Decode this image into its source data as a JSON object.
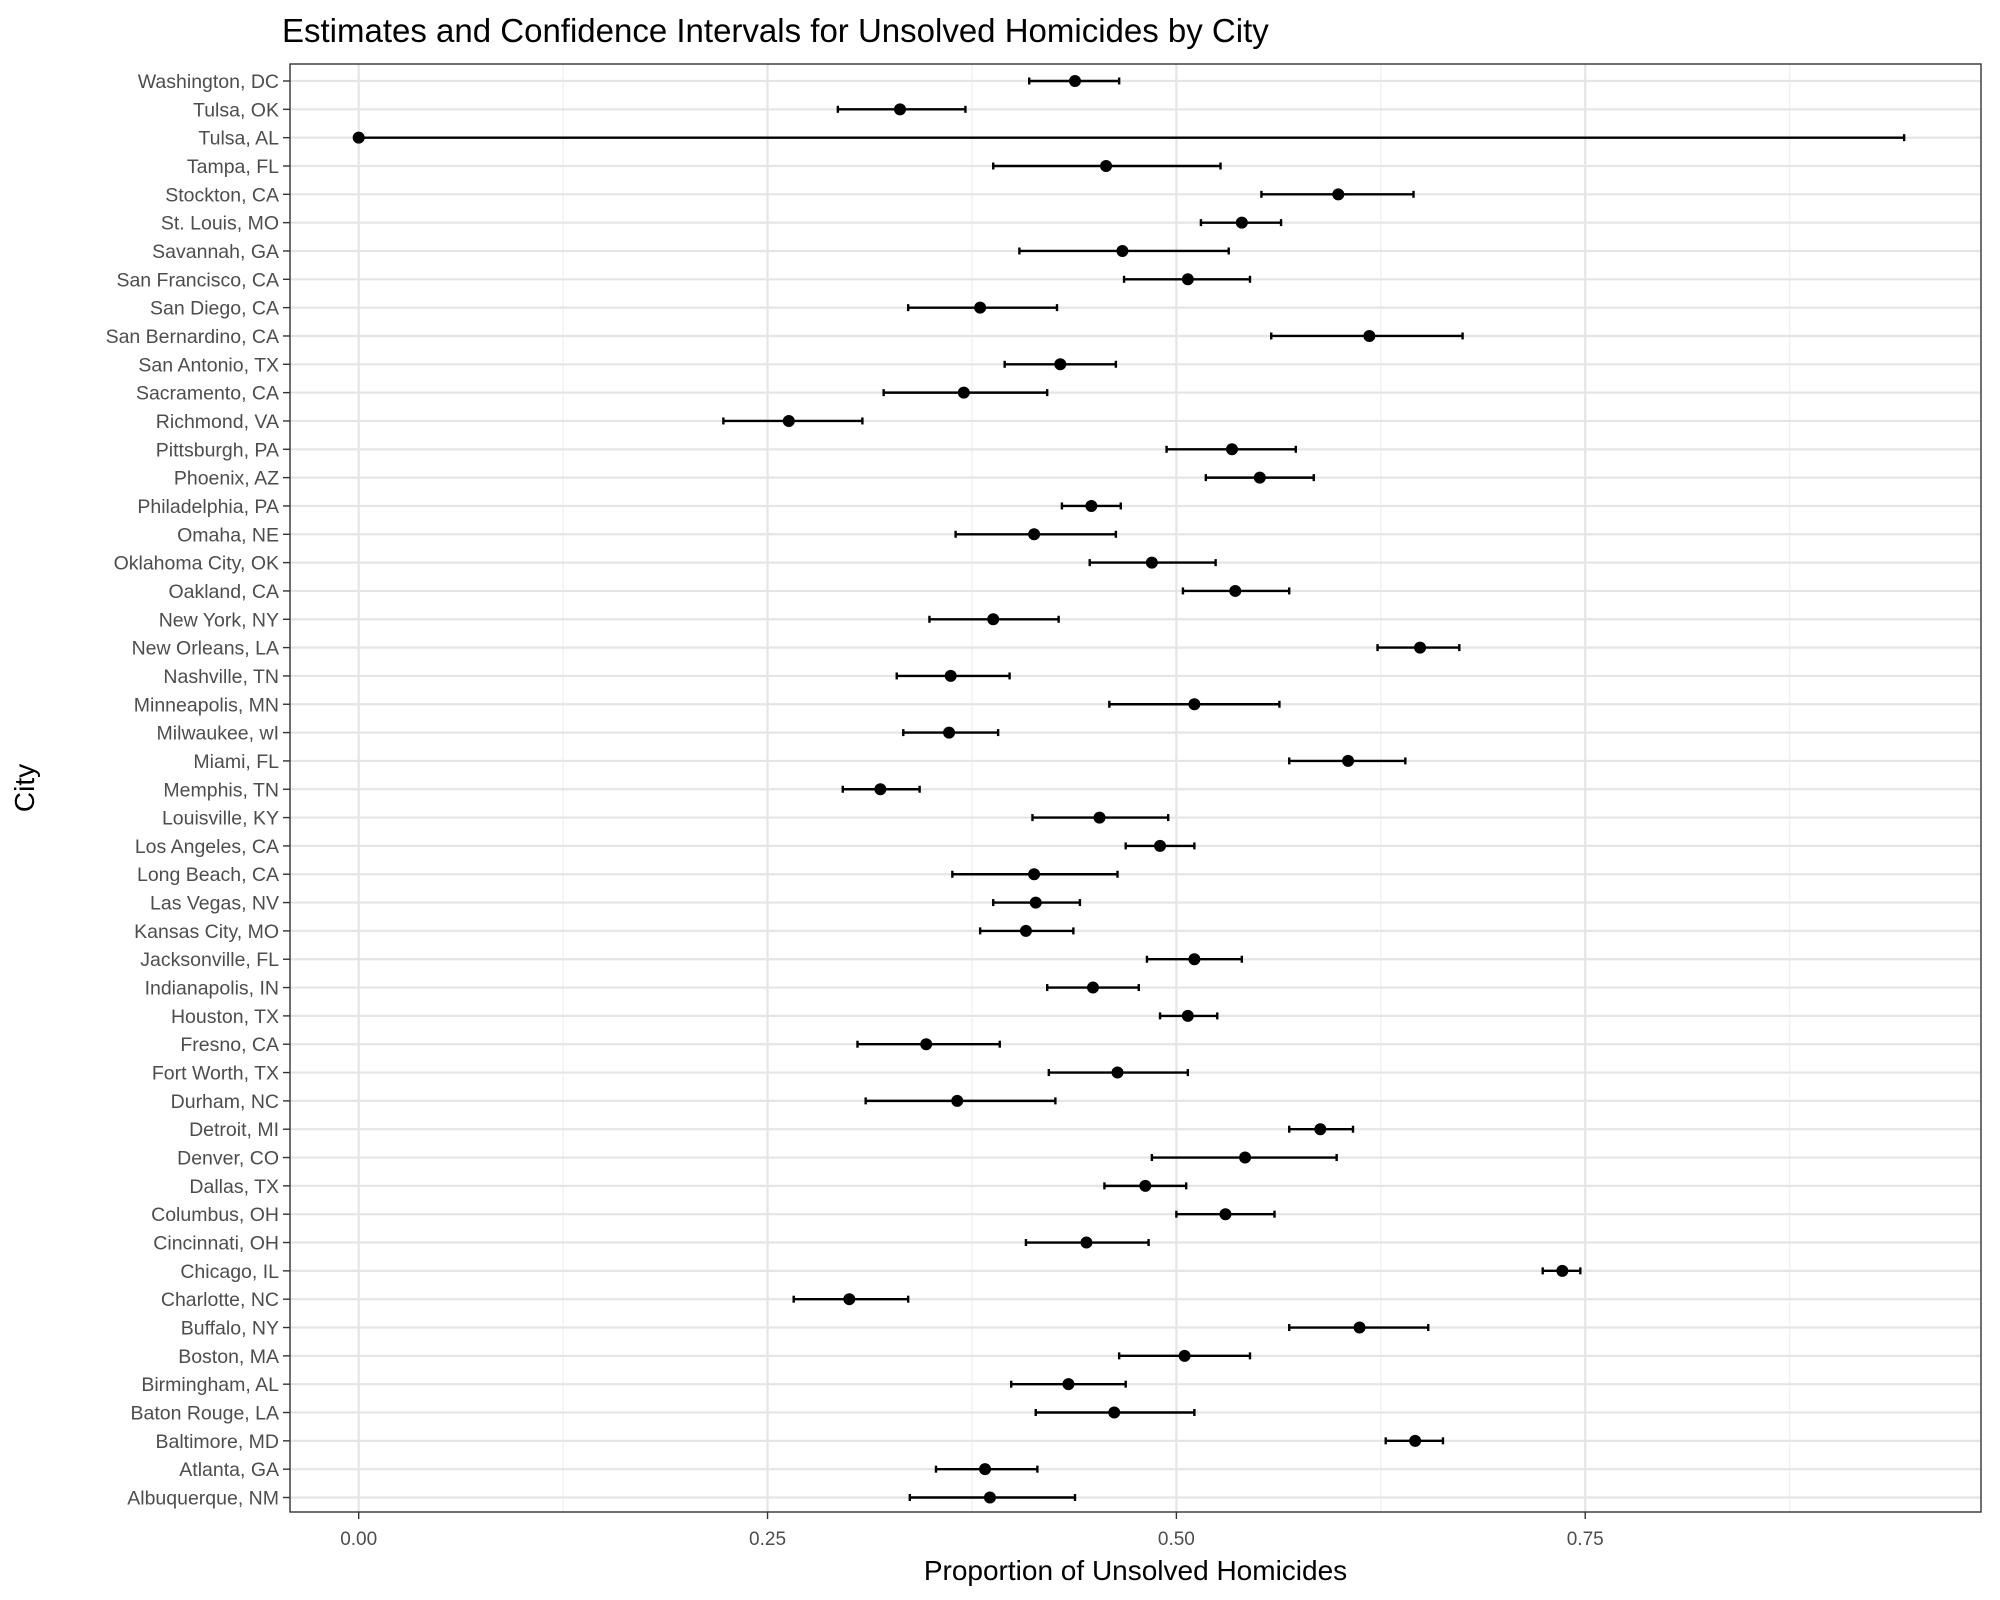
{
  "chart_data": {
    "type": "errorbar",
    "title": "Estimates and Confidence Intervals for Unsolved Homicides by City",
    "xlabel": "Proportion of Unsolved Homicides",
    "ylabel": "City",
    "xlim": [
      -0.042,
      0.992
    ],
    "xticks": [
      0,
      0.25,
      0.5,
      0.75
    ],
    "xtick_labels": [
      "0.00",
      "0.25",
      "0.50",
      "0.75"
    ],
    "grid": true,
    "legend": "none",
    "colors": {
      "point": "#000000",
      "errorbar": "#000000",
      "grid_major": "#e5e5e5",
      "grid_minor": "#f0f0f0",
      "panel_border": "#333333",
      "tick_text": "#4d4d4d"
    },
    "cities": [
      {
        "city": "Washington, DC",
        "estimate": 0.438,
        "lower": 0.41,
        "upper": 0.465
      },
      {
        "city": "Tulsa, OK",
        "estimate": 0.331,
        "lower": 0.293,
        "upper": 0.371
      },
      {
        "city": "Tulsa, AL",
        "estimate": 0.0,
        "lower": 0.0,
        "upper": 0.945
      },
      {
        "city": "Tampa, FL",
        "estimate": 0.457,
        "lower": 0.388,
        "upper": 0.527
      },
      {
        "city": "Stockton, CA",
        "estimate": 0.599,
        "lower": 0.552,
        "upper": 0.645
      },
      {
        "city": "St. Louis, MO",
        "estimate": 0.54,
        "lower": 0.515,
        "upper": 0.564
      },
      {
        "city": "Savannah, GA",
        "estimate": 0.467,
        "lower": 0.404,
        "upper": 0.532
      },
      {
        "city": "San Francisco, CA",
        "estimate": 0.507,
        "lower": 0.468,
        "upper": 0.545
      },
      {
        "city": "San Diego, CA",
        "estimate": 0.38,
        "lower": 0.336,
        "upper": 0.427
      },
      {
        "city": "San Bernardino, CA",
        "estimate": 0.618,
        "lower": 0.558,
        "upper": 0.675
      },
      {
        "city": "San Antonio, TX",
        "estimate": 0.429,
        "lower": 0.395,
        "upper": 0.463
      },
      {
        "city": "Sacramento, CA",
        "estimate": 0.37,
        "lower": 0.321,
        "upper": 0.421
      },
      {
        "city": "Richmond, VA",
        "estimate": 0.263,
        "lower": 0.223,
        "upper": 0.308
      },
      {
        "city": "Pittsburgh, PA",
        "estimate": 0.534,
        "lower": 0.494,
        "upper": 0.573
      },
      {
        "city": "Phoenix, AZ",
        "estimate": 0.551,
        "lower": 0.518,
        "upper": 0.584
      },
      {
        "city": "Philadelphia, PA",
        "estimate": 0.448,
        "lower": 0.43,
        "upper": 0.466
      },
      {
        "city": "Omaha, NE",
        "estimate": 0.413,
        "lower": 0.365,
        "upper": 0.463
      },
      {
        "city": "Oklahoma City, OK",
        "estimate": 0.485,
        "lower": 0.447,
        "upper": 0.524
      },
      {
        "city": "Oakland, CA",
        "estimate": 0.536,
        "lower": 0.504,
        "upper": 0.569
      },
      {
        "city": "New York, NY",
        "estimate": 0.388,
        "lower": 0.349,
        "upper": 0.428
      },
      {
        "city": "New Orleans, LA",
        "estimate": 0.649,
        "lower": 0.623,
        "upper": 0.673
      },
      {
        "city": "Nashville, TN",
        "estimate": 0.362,
        "lower": 0.329,
        "upper": 0.398
      },
      {
        "city": "Minneapolis, MN",
        "estimate": 0.511,
        "lower": 0.459,
        "upper": 0.563
      },
      {
        "city": "Milwaukee, wI",
        "estimate": 0.361,
        "lower": 0.333,
        "upper": 0.391
      },
      {
        "city": "Miami, FL",
        "estimate": 0.605,
        "lower": 0.569,
        "upper": 0.64
      },
      {
        "city": "Memphis, TN",
        "estimate": 0.319,
        "lower": 0.296,
        "upper": 0.343
      },
      {
        "city": "Louisville, KY",
        "estimate": 0.453,
        "lower": 0.412,
        "upper": 0.495
      },
      {
        "city": "Los Angeles, CA",
        "estimate": 0.49,
        "lower": 0.469,
        "upper": 0.511
      },
      {
        "city": "Long Beach, CA",
        "estimate": 0.413,
        "lower": 0.363,
        "upper": 0.464
      },
      {
        "city": "Las Vegas, NV",
        "estimate": 0.414,
        "lower": 0.388,
        "upper": 0.441
      },
      {
        "city": "Kansas City, MO",
        "estimate": 0.408,
        "lower": 0.38,
        "upper": 0.437
      },
      {
        "city": "Jacksonville, FL",
        "estimate": 0.511,
        "lower": 0.482,
        "upper": 0.54
      },
      {
        "city": "Indianapolis, IN",
        "estimate": 0.449,
        "lower": 0.421,
        "upper": 0.477
      },
      {
        "city": "Houston, TX",
        "estimate": 0.507,
        "lower": 0.49,
        "upper": 0.525
      },
      {
        "city": "Fresno, CA",
        "estimate": 0.347,
        "lower": 0.305,
        "upper": 0.392
      },
      {
        "city": "Fort Worth, TX",
        "estimate": 0.464,
        "lower": 0.422,
        "upper": 0.507
      },
      {
        "city": "Durham, NC",
        "estimate": 0.366,
        "lower": 0.31,
        "upper": 0.426
      },
      {
        "city": "Detroit, MI",
        "estimate": 0.588,
        "lower": 0.569,
        "upper": 0.608
      },
      {
        "city": "Denver, CO",
        "estimate": 0.542,
        "lower": 0.485,
        "upper": 0.598
      },
      {
        "city": "Dallas, TX",
        "estimate": 0.481,
        "lower": 0.456,
        "upper": 0.506
      },
      {
        "city": "Columbus, OH",
        "estimate": 0.53,
        "lower": 0.5,
        "upper": 0.56
      },
      {
        "city": "Cincinnati, OH",
        "estimate": 0.445,
        "lower": 0.408,
        "upper": 0.483
      },
      {
        "city": "Chicago, IL",
        "estimate": 0.736,
        "lower": 0.724,
        "upper": 0.747
      },
      {
        "city": "Charlotte, NC",
        "estimate": 0.3,
        "lower": 0.266,
        "upper": 0.336
      },
      {
        "city": "Buffalo, NY",
        "estimate": 0.612,
        "lower": 0.569,
        "upper": 0.654
      },
      {
        "city": "Boston, MA",
        "estimate": 0.505,
        "lower": 0.465,
        "upper": 0.545
      },
      {
        "city": "Birmingham, AL",
        "estimate": 0.434,
        "lower": 0.399,
        "upper": 0.469
      },
      {
        "city": "Baton Rouge, LA",
        "estimate": 0.462,
        "lower": 0.414,
        "upper": 0.511
      },
      {
        "city": "Baltimore, MD",
        "estimate": 0.646,
        "lower": 0.628,
        "upper": 0.663
      },
      {
        "city": "Atlanta, GA",
        "estimate": 0.383,
        "lower": 0.353,
        "upper": 0.415
      },
      {
        "city": "Albuquerque, NM",
        "estimate": 0.386,
        "lower": 0.337,
        "upper": 0.438
      }
    ]
  }
}
